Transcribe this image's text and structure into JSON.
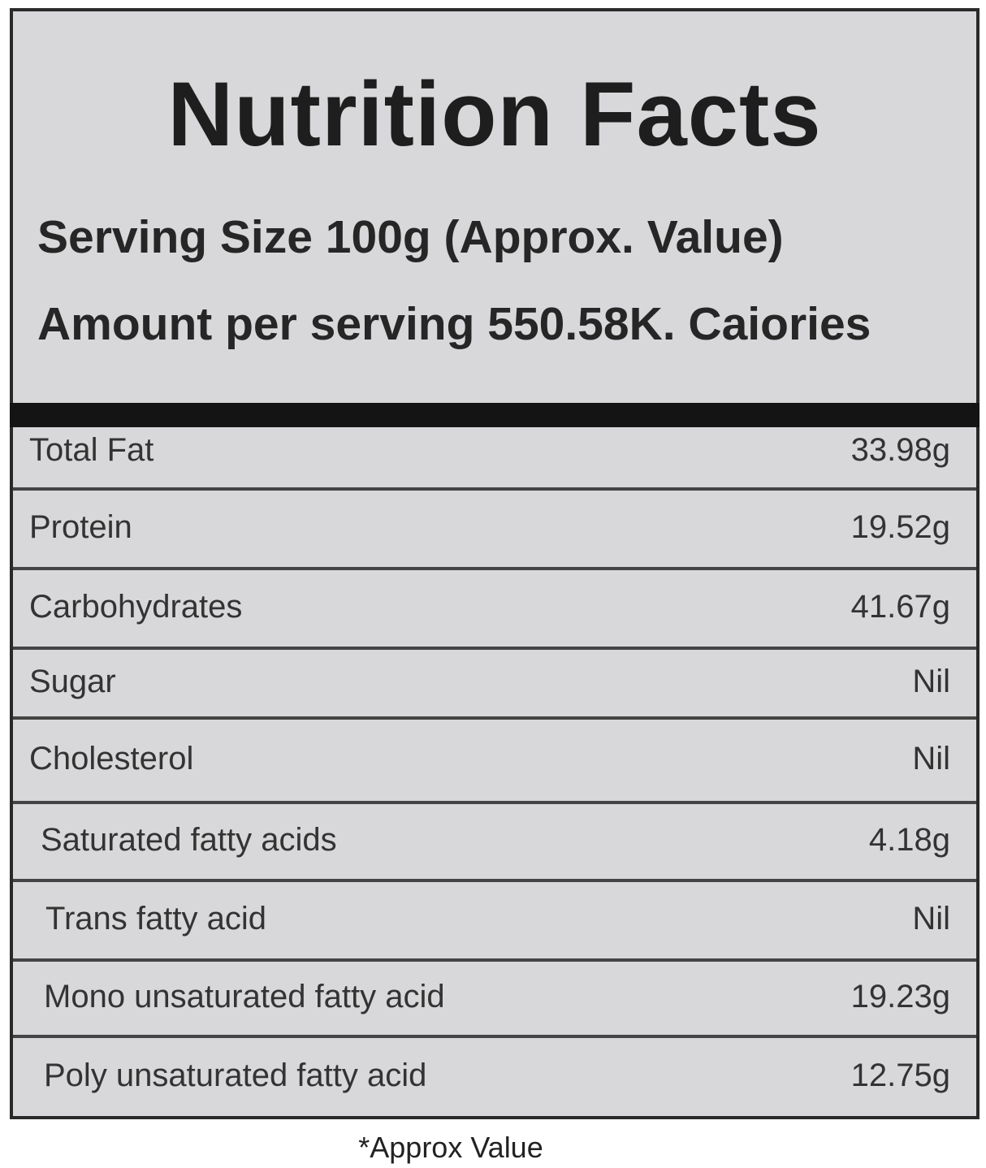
{
  "header": {
    "title": "Nutrition Facts",
    "serving_size": "Serving Size 100g (Approx. Value)",
    "amount": "Amount per serving 550.58K. Caiories"
  },
  "table": {
    "rows": [
      [
        "Total Fat",
        "33.98g"
      ],
      [
        "Protein",
        "19.52g"
      ],
      [
        "Carbohydrates",
        "41.67g"
      ],
      [
        "Sugar",
        "Nil"
      ],
      [
        "Cholesterol",
        "Nil"
      ],
      [
        "Saturated fatty acids",
        "4.18g"
      ],
      [
        "Trans fatty acid",
        "Nil"
      ],
      [
        "Mono unsaturated fatty acid",
        "19.23g"
      ],
      [
        "Poly unsaturated fatty acid",
        "12.75g"
      ]
    ]
  },
  "footnote": "*Approx Value"
}
